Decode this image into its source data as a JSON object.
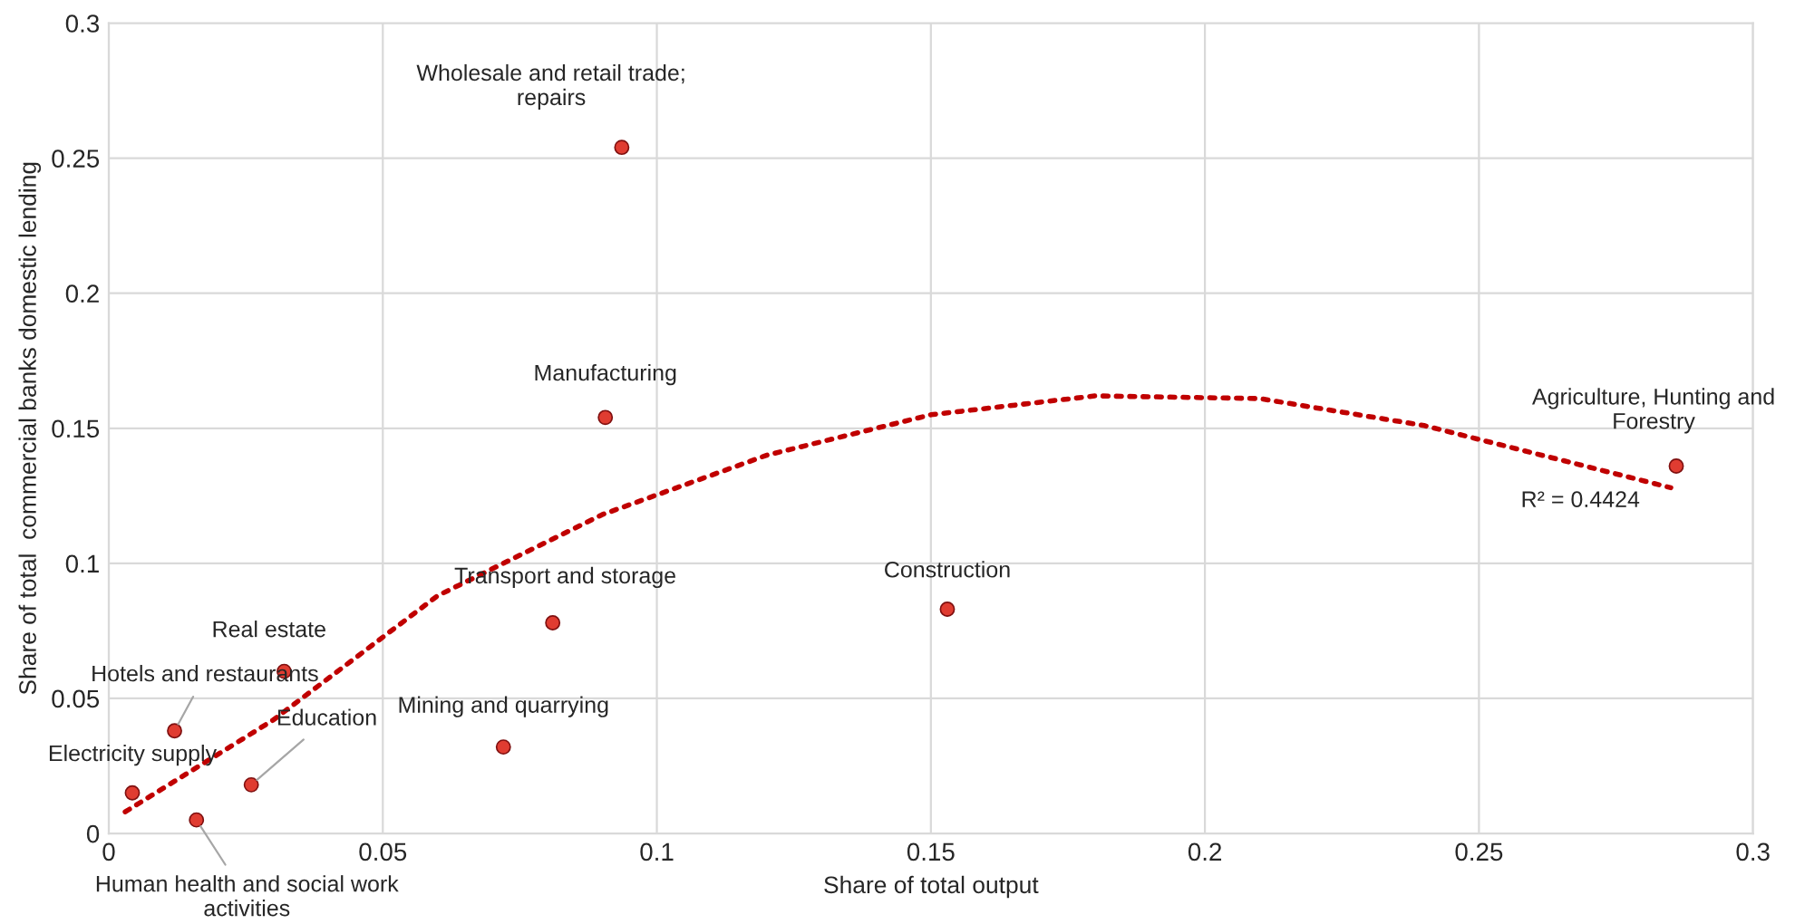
{
  "chart_data": {
    "type": "scatter",
    "xlabel": "Share of total output",
    "ylabel": "Share of total  commercial banks domestic lending",
    "xlim": [
      0,
      0.3
    ],
    "xticks": [
      {
        "value": 0,
        "label": "0"
      },
      0.05,
      0.1,
      0.15,
      0.2,
      0.25,
      0.3
    ],
    "ylim": [
      0,
      0.3
    ],
    "yticks": [
      {
        "value": 0,
        "label": "0"
      },
      0.05,
      0.1,
      0.15,
      0.2,
      0.25,
      0.3
    ],
    "grid": true,
    "legend": false,
    "series": [
      {
        "color": "#e03c31",
        "marker": "circle",
        "x": [
          0.0936,
          0.0906,
          0.286,
          0.153,
          0.081,
          0.072,
          0.032,
          0.012,
          0.026,
          0.0043,
          0.016
        ],
        "values": [
          0.254,
          0.154,
          0.136,
          0.083,
          0.078,
          0.032,
          0.06,
          0.038,
          0.018,
          0.015,
          0.005
        ]
      },
      {
        "type": "line",
        "color": "#c00000",
        "line_style": "dotted",
        "marker": "none",
        "x": [
          0.003,
          0.03,
          0.06,
          0.09,
          0.12,
          0.15,
          0.18,
          0.21,
          0.24,
          0.285
        ],
        "values": [
          0.008,
          0.042,
          0.088,
          0.118,
          0.14,
          0.155,
          0.162,
          0.161,
          0.151,
          0.128
        ]
      }
    ],
    "annotations": [
      {
        "text": "Wholesale and retail trade;\nrepairs",
        "x": 0.0936,
        "y": 0.254
      },
      {
        "text": "Manufacturing",
        "x": 0.0906,
        "y": 0.154
      },
      {
        "text": "Agriculture, Hunting and\nForestry",
        "x": 0.286,
        "y": 0.136
      },
      {
        "text": "Construction",
        "x": 0.153,
        "y": 0.083
      },
      {
        "text": "Transport and storage",
        "x": 0.081,
        "y": 0.078
      },
      {
        "text": "Mining and quarrying",
        "x": 0.072,
        "y": 0.032
      },
      {
        "text": "Real estate",
        "x": 0.032,
        "y": 0.06
      },
      {
        "text": "Hotels and restaurants",
        "x": 0.012,
        "y": 0.038
      },
      {
        "text": "Education",
        "x": 0.026,
        "y": 0.018
      },
      {
        "text": "Electricity supply",
        "x": 0.0043,
        "y": 0.015
      },
      {
        "text": "Human health and social work\nactivities",
        "x": 0.016,
        "y": 0.005
      },
      "R² = 0.4424"
    ]
  }
}
